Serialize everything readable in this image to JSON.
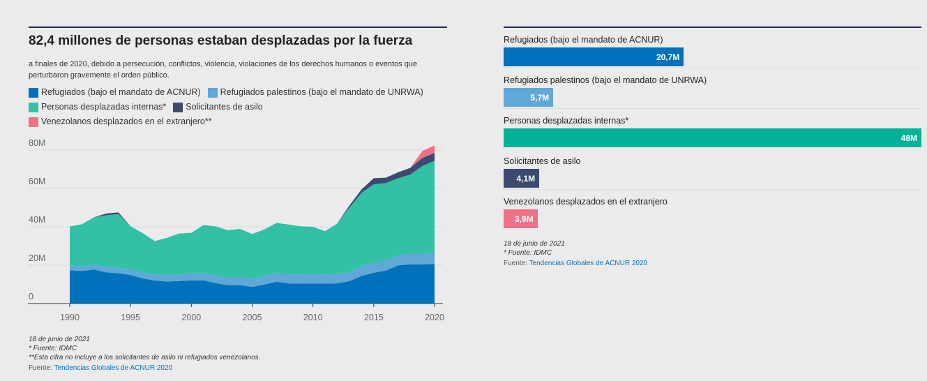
{
  "left": {
    "title": "82,4 millones de personas estaban desplazadas por la fuerza",
    "subtitle": "a finales de 2020, debido a persecución, conflictos, violencia, violaciones de los derechos humanos o eventos que perturbaron gravemente el orden público.",
    "legend": [
      {
        "label": "Refugiados (bajo el mandato de ACNUR)",
        "color": "#0072bc"
      },
      {
        "label": "Refugiados palestinos (bajo el mandato de UNRWA)",
        "color": "#5fa8d8"
      },
      {
        "label": "Personas desplazadas internas*",
        "color": "#32c1a4"
      },
      {
        "label": "Solicitantes de asilo",
        "color": "#3b4a6e"
      },
      {
        "label": "Venezolanos desplazados en el extranjero**",
        "color": "#ef7186"
      }
    ],
    "footnotes": {
      "date": "18 de junio de 2021",
      "note1": "* Fuente: IDMC",
      "note2": "**Esta cifra no incluye a los solicitantes de asilo ni refugiados venezolanos.",
      "source_prefix": "Fuente: ",
      "source_link": "Tendencias Globales de ACNUR 2020"
    }
  },
  "chart_data": [
    {
      "type": "area",
      "stacked": true,
      "title": "82,4 millones de personas estaban desplazadas por la fuerza",
      "xlabel": "",
      "ylabel": "",
      "xlim": [
        1990,
        2020
      ],
      "ylim": [
        0,
        80
      ],
      "y_tick_labels": [
        "0",
        "20M",
        "40M",
        "60M",
        "80M"
      ],
      "y_ticks": [
        0,
        20,
        40,
        60,
        80
      ],
      "x_ticks": [
        1990,
        1995,
        2000,
        2005,
        2010,
        2015,
        2020
      ],
      "grid": "horizontal",
      "x": [
        1990,
        1991,
        1992,
        1993,
        1994,
        1995,
        1996,
        1997,
        1998,
        1999,
        2000,
        2001,
        2002,
        2003,
        2004,
        2005,
        2006,
        2007,
        2008,
        2009,
        2010,
        2011,
        2012,
        2013,
        2014,
        2015,
        2016,
        2017,
        2018,
        2019,
        2020
      ],
      "series": [
        {
          "name": "Refugiados (bajo el mandato de ACNUR)",
          "color": "#0072bc",
          "values": [
            17.4,
            17.0,
            17.8,
            16.3,
            15.8,
            14.9,
            13.1,
            12.0,
            11.5,
            11.7,
            12.1,
            12.1,
            10.6,
            9.6,
            9.6,
            8.7,
            9.9,
            11.4,
            10.5,
            10.4,
            10.5,
            10.4,
            10.5,
            11.7,
            14.4,
            16.1,
            17.2,
            19.9,
            20.4,
            20.4,
            20.7
          ]
        },
        {
          "name": "Refugiados palestinos (bajo el mandato de UNRWA)",
          "color": "#5fa8d8",
          "values": [
            2.4,
            2.5,
            2.6,
            2.7,
            2.8,
            3.0,
            3.1,
            3.2,
            3.3,
            3.4,
            3.6,
            3.7,
            3.9,
            4.0,
            4.1,
            4.2,
            4.3,
            4.6,
            4.7,
            4.8,
            4.8,
            4.8,
            4.9,
            5.0,
            5.1,
            5.2,
            5.3,
            5.4,
            5.5,
            5.6,
            5.7
          ]
        },
        {
          "name": "Personas desplazadas internas*",
          "color": "#32c1a4",
          "values": [
            20.4,
            21.8,
            24.6,
            27.0,
            28.0,
            22.4,
            20.5,
            17.4,
            19.4,
            21.4,
            21.1,
            25.1,
            25.7,
            24.6,
            25.2,
            23.3,
            24.4,
            26.0,
            26.0,
            25.0,
            24.7,
            22.5,
            26.3,
            33.3,
            38.2,
            40.8,
            40.3,
            40.0,
            41.3,
            45.7,
            48.0
          ]
        },
        {
          "name": "Solicitantes de asilo",
          "color": "#3b4a6e",
          "values": [
            0,
            0,
            0,
            0.9,
            0.9,
            0,
            0,
            0,
            0,
            0,
            0,
            0,
            0,
            0,
            0,
            0,
            0,
            0,
            0,
            0,
            0,
            0,
            0,
            1.1,
            1.8,
            3.2,
            2.8,
            3.1,
            3.5,
            4.2,
            4.1
          ]
        },
        {
          "name": "Venezolanos desplazados en el extranjero**",
          "color": "#ef7186",
          "values": [
            0,
            0,
            0,
            0,
            0,
            0,
            0,
            0,
            0,
            0,
            0,
            0,
            0,
            0,
            0,
            0,
            0,
            0,
            0,
            0,
            0,
            0,
            0,
            0,
            0,
            0,
            0,
            0,
            0,
            3.6,
            3.9
          ]
        }
      ]
    },
    {
      "type": "bar",
      "orientation": "horizontal",
      "categories": [
        "Refugiados (bajo el mandato de ACNUR)",
        "Refugiados palestinos (bajo el mandato de UNRWA)",
        "Personas desplazadas internas*",
        "Solicitantes de asilo",
        "Venezolanos desplazados en el extranjero"
      ],
      "values": [
        20.7,
        5.7,
        48,
        4.1,
        3.9
      ],
      "value_labels": [
        "20,7M",
        "5,7M",
        "48M",
        "4,1M",
        "3,9M"
      ],
      "colors": [
        "#0072bc",
        "#5fa8d8",
        "#00b398",
        "#3b4a6e",
        "#ef7186"
      ],
      "xlim": [
        0,
        48
      ]
    }
  ],
  "right": {
    "footnotes": {
      "date": "18 de junio de 2021",
      "note1": "* Fuente: IDMC",
      "source_prefix": "Fuente: ",
      "source_link": "Tendencias Globales de ACNUR 2020"
    }
  }
}
